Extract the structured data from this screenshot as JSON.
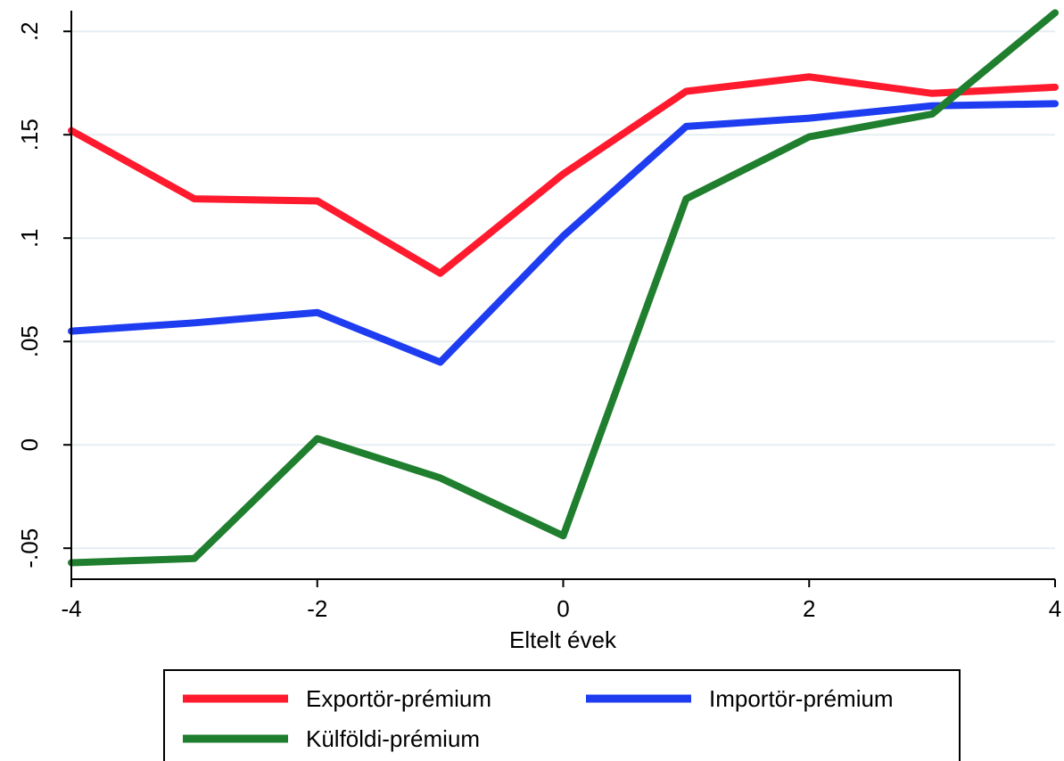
{
  "chart_data": {
    "type": "line",
    "title": "",
    "xlabel": "Eltelt évek",
    "ylabel": "",
    "xlim": [
      -4,
      4
    ],
    "ylim": [
      -0.065,
      0.21
    ],
    "x": [
      -4,
      -3,
      -2,
      -1,
      0,
      1,
      2,
      3,
      4
    ],
    "x_ticks": [
      -4,
      -2,
      0,
      2,
      4
    ],
    "x_tick_labels": [
      "-4",
      "-2",
      "0",
      "2",
      "4"
    ],
    "y_ticks": [
      -0.05,
      0,
      0.05,
      0.1,
      0.15,
      0.2
    ],
    "y_tick_labels": [
      "-.05",
      "0",
      ".05",
      ".1",
      ".15",
      ".2"
    ],
    "grid": true,
    "legend_position": "bottom",
    "series": [
      {
        "name": "Exportör-prémium",
        "color": "#ff1a2e",
        "values": [
          0.152,
          0.119,
          0.118,
          0.083,
          0.131,
          0.171,
          0.178,
          0.17,
          0.173
        ]
      },
      {
        "name": "Importör-prémium",
        "color": "#1f3df0",
        "values": [
          0.055,
          0.059,
          0.064,
          0.04,
          0.101,
          0.154,
          0.158,
          0.164,
          0.165
        ]
      },
      {
        "name": "Külföldi-prémium",
        "color": "#1f7f2e",
        "values": [
          -0.057,
          -0.055,
          0.003,
          -0.016,
          -0.044,
          0.119,
          0.149,
          0.16,
          0.209
        ]
      }
    ]
  }
}
